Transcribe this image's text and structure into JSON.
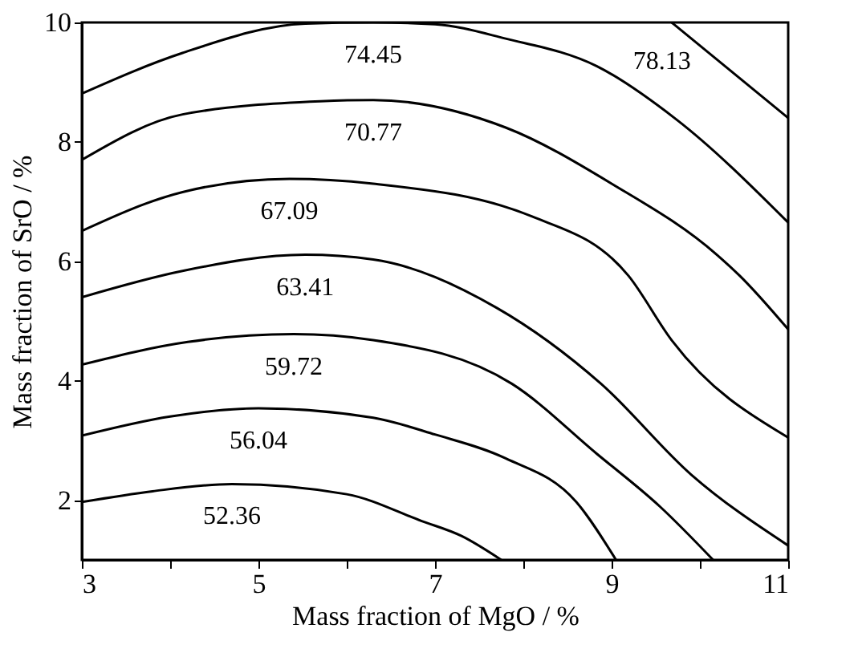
{
  "chart_data": {
    "type": "line",
    "xlabel": "Mass fraction of MgO / %",
    "ylabel": "Mass fraction of SrO / %",
    "xlim": [
      3,
      11
    ],
    "xticks": [
      3,
      {
        "value": 4,
        "label": null
      },
      5,
      {
        "value": 6,
        "label": null
      },
      7,
      {
        "value": 8,
        "label": null
      },
      9,
      {
        "value": 10,
        "label": null
      },
      11
    ],
    "ylim": [
      1,
      10
    ],
    "yticks": [
      2,
      4,
      6,
      8,
      10
    ],
    "grid": false,
    "legend": false,
    "marker": "none",
    "line_style": "solid",
    "series": [
      {
        "name": "52.36",
        "color": "#000000",
        "x": [
          3,
          3.8,
          4.7,
          6.0,
          6.85,
          7.3,
          7.75
        ],
        "values": [
          1.97,
          2.15,
          2.27,
          2.1,
          1.65,
          1.4,
          1.0
        ]
      },
      {
        "name": "56.04",
        "color": "#000000",
        "x": [
          3,
          4.0,
          5.0,
          6.3,
          7.0,
          7.8,
          8.6,
          9.05
        ],
        "values": [
          3.08,
          3.4,
          3.54,
          3.38,
          3.1,
          2.7,
          1.97,
          1.0
        ]
      },
      {
        "name": "59.72",
        "color": "#000000",
        "x": [
          3,
          4.2,
          5.4,
          6.3,
          7.87,
          8.83,
          9.55,
          10.15
        ],
        "values": [
          4.27,
          4.65,
          4.78,
          4.68,
          3.95,
          2.78,
          1.89,
          1.0
        ]
      },
      {
        "name": "63.41",
        "color": "#000000",
        "x": [
          3,
          4.14,
          5.53,
          6.3,
          7.7,
          8.88,
          9.9,
          11
        ],
        "values": [
          5.4,
          5.84,
          6.11,
          6.03,
          5.22,
          3.95,
          2.43,
          1.24
        ]
      },
      {
        "name": "67.09",
        "color": "#000000",
        "x": [
          3,
          4.14,
          5.35,
          6.3,
          8.1,
          9.19,
          9.68,
          11
        ],
        "values": [
          6.51,
          7.16,
          7.38,
          7.3,
          6.75,
          5.76,
          4.68,
          3.05
        ]
      },
      {
        "name": "70.77",
        "color": "#000000",
        "x": [
          3,
          4.14,
          5.7,
          6.3,
          7.8,
          9.0,
          10.2,
          10.45,
          11
        ],
        "values": [
          7.7,
          8.46,
          8.68,
          8.7,
          8.24,
          7.3,
          6.1,
          5.76,
          4.86
        ]
      },
      {
        "name": "74.45",
        "color": "#000000",
        "x": [
          3,
          4.14,
          5.53,
          6.3,
          7.0,
          7.8,
          8.83,
          9.73,
          11
        ],
        "values": [
          8.81,
          9.49,
          9.98,
          10.0,
          9.97,
          9.73,
          9.27,
          8.38,
          6.65
        ]
      },
      {
        "name": "78.13",
        "color": "#000000",
        "x": [
          9.68,
          10.3,
          11
        ],
        "values": [
          10.0,
          9.25,
          8.4
        ]
      }
    ]
  }
}
